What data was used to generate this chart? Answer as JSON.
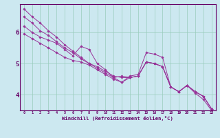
{
  "xlabel": "Windchill (Refroidissement éolien,°C)",
  "bg_color": "#cce8f0",
  "line_color": "#993399",
  "grid_color": "#99ccbb",
  "axis_color": "#660066",
  "tick_color": "#660066",
  "xlim": [
    -0.5,
    23.5
  ],
  "ylim": [
    3.5,
    6.9
  ],
  "yticks": [
    4,
    5,
    6
  ],
  "xticks": [
    0,
    1,
    2,
    3,
    4,
    5,
    6,
    7,
    8,
    9,
    10,
    11,
    12,
    13,
    14,
    15,
    16,
    17,
    18,
    19,
    20,
    21,
    22,
    23
  ],
  "series": [
    [
      6.75,
      6.5,
      6.3,
      6.05,
      5.85,
      5.6,
      5.4,
      5.2,
      5.0,
      4.85,
      4.7,
      4.55,
      4.4,
      4.6,
      4.65,
      5.35,
      5.3,
      5.2,
      4.25,
      4.1,
      4.3,
      4.05,
      3.85,
      3.5
    ],
    [
      6.5,
      6.3,
      6.05,
      5.9,
      5.7,
      5.5,
      5.35,
      5.15,
      5.0,
      4.9,
      4.75,
      4.6,
      4.55,
      4.55,
      4.6,
      5.05,
      5.0,
      4.9,
      4.25,
      4.1,
      4.3,
      4.1,
      3.95,
      3.55
    ],
    [
      6.2,
      6.0,
      5.85,
      5.75,
      5.65,
      5.45,
      5.25,
      5.55,
      5.45,
      5.0,
      4.8,
      4.55,
      4.6,
      4.55,
      4.6,
      5.05,
      5.0,
      4.9,
      4.25,
      4.1,
      4.3,
      4.1,
      3.95,
      3.55
    ],
    [
      5.95,
      5.8,
      5.65,
      5.5,
      5.35,
      5.2,
      5.1,
      5.05,
      4.95,
      4.8,
      4.65,
      4.5,
      4.4,
      4.55,
      4.6,
      5.05,
      5.0,
      4.9,
      4.25,
      4.1,
      4.3,
      4.1,
      3.95,
      3.55
    ]
  ]
}
